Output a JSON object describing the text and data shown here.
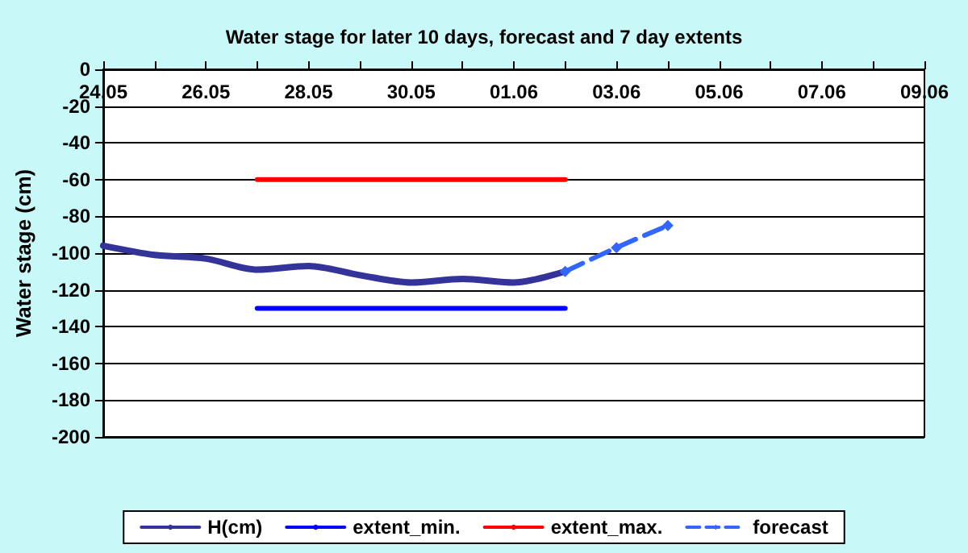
{
  "chart_data": {
    "type": "line",
    "title": "Water stage for later 10 days, forecast and 7 day extents",
    "ylabel": "Water stage (cm)",
    "xlim": [
      "--05-24",
      "--06-09"
    ],
    "xticks": [
      {
        "value": "--05-24",
        "label": "24.05"
      },
      {
        "value": "--05-25",
        "label": null
      },
      {
        "value": "--05-26",
        "label": "26.05"
      },
      {
        "value": "--05-27",
        "label": null
      },
      {
        "value": "--05-28",
        "label": "28.05"
      },
      {
        "value": "--05-29",
        "label": null
      },
      {
        "value": "--05-30",
        "label": "30.05"
      },
      {
        "value": "--05-31",
        "label": null
      },
      {
        "value": "--06-01",
        "label": "01.06"
      },
      {
        "value": "--06-02",
        "label": null
      },
      {
        "value": "--06-03",
        "label": "03.06"
      },
      {
        "value": "--06-04",
        "label": null
      },
      {
        "value": "--06-05",
        "label": "05.06"
      },
      {
        "value": "--06-06",
        "label": null
      },
      {
        "value": "--06-07",
        "label": "07.06"
      },
      {
        "value": "--06-08",
        "label": null
      },
      {
        "value": "--06-09",
        "label": "09.06"
      }
    ],
    "ylim": [
      -200,
      0
    ],
    "yticks": [
      -200,
      -180,
      -160,
      -140,
      -120,
      -100,
      -80,
      -60,
      -40,
      -20,
      0
    ],
    "grid": "y",
    "legend": "bottom",
    "marker": "none",
    "line_style": "solid",
    "series": [
      {
        "name": "H(cm)",
        "color": "#333399",
        "x": [
          "--05-24",
          "--05-25",
          "--05-26",
          "--05-27",
          "--05-28",
          "--05-29",
          "--05-30",
          "--05-31",
          "--06-01",
          "--06-02"
        ],
        "values": [
          -96,
          -101,
          -103,
          -109,
          -107,
          -112,
          -116,
          -114,
          -116,
          -110
        ]
      },
      {
        "name": "extent_min.",
        "color": "#0000ff",
        "x": [
          "--05-27",
          "--06-02"
        ],
        "values": [
          -130,
          -130
        ]
      },
      {
        "name": "extent_max.",
        "color": "#ff0000",
        "x": [
          "--05-27",
          "--06-02"
        ],
        "values": [
          -60,
          -60
        ]
      },
      {
        "name": "forecast",
        "color": "#3366ff",
        "x": [
          "--06-02",
          "--06-03",
          "--06-04"
        ],
        "values": [
          -110,
          -97,
          -85
        ],
        "line_style": "dashed",
        "marker": "diamond"
      }
    ]
  }
}
